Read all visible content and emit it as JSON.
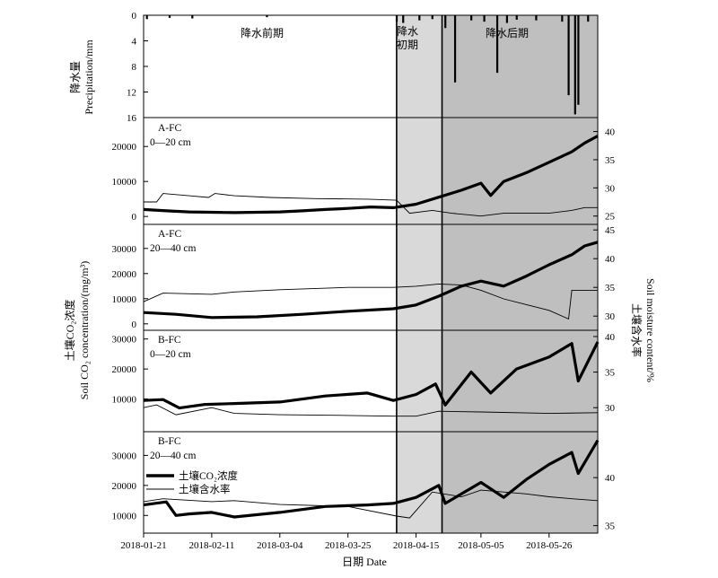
{
  "chart_data": {
    "type": "line",
    "x_ticks": [
      "2018-01-21",
      "2018-02-11",
      "2018-03-04",
      "2018-03-25",
      "2018-04-15",
      "2018-05-05",
      "2018-05-26"
    ],
    "x_range": [
      "2018-01-21",
      "2018-06-10"
    ],
    "x_label": "日期 Date",
    "periods": [
      {
        "label": "降水前期",
        "start": "2018-01-21",
        "end": "2018-04-09",
        "shade": "#ffffff"
      },
      {
        "label_lines": [
          "降水",
          "初期"
        ],
        "start": "2018-04-09",
        "end": "2018-04-23",
        "shade": "#d9d9d9"
      },
      {
        "label": "降水后期",
        "start": "2018-04-23",
        "end": "2018-06-10",
        "shade": "#bfbfbf"
      }
    ],
    "precipitation": {
      "ylabel_cn": "降水量",
      "ylabel_en": "Precipitation/mm",
      "yticks": [
        "0",
        "4",
        "8",
        "12",
        "16"
      ],
      "ylim": [
        0,
        16
      ],
      "inverted": true,
      "events": [
        {
          "date": "2018-01-22",
          "value": 0.6
        },
        {
          "date": "2018-01-29",
          "value": 0.4
        },
        {
          "date": "2018-02-05",
          "value": 0.5
        },
        {
          "date": "2018-02-28",
          "value": 0.3
        },
        {
          "date": "2018-04-09",
          "value": 1.0
        },
        {
          "date": "2018-04-11",
          "value": 1.2
        },
        {
          "date": "2018-04-16",
          "value": 0.8
        },
        {
          "date": "2018-04-20",
          "value": 0.6
        },
        {
          "date": "2018-04-24",
          "value": 2.0
        },
        {
          "date": "2018-04-27",
          "value": 10.5
        },
        {
          "date": "2018-05-02",
          "value": 0.8
        },
        {
          "date": "2018-05-06",
          "value": 1.0
        },
        {
          "date": "2018-05-10",
          "value": 9.0
        },
        {
          "date": "2018-05-13",
          "value": 1.2
        },
        {
          "date": "2018-05-16",
          "value": 0.7
        },
        {
          "date": "2018-05-22",
          "value": 0.8
        },
        {
          "date": "2018-05-30",
          "value": 1.0
        },
        {
          "date": "2018-06-01",
          "value": 12.5
        },
        {
          "date": "2018-06-03",
          "value": 15.5
        },
        {
          "date": "2018-06-04",
          "value": 14.0
        },
        {
          "date": "2018-06-07",
          "value": 1.0
        }
      ]
    },
    "shared_ylabel_left": "土壤CO₂浓度",
    "shared_ylabel_left_en": "Soil CO₂ concentration/(mg/m³)",
    "shared_ylabel_right": "土壤含水率",
    "shared_ylabel_right_en": "Soil moisture content/%",
    "panels": [
      {
        "title": "A-FC",
        "depth": "0—20 cm",
        "ylim_left": [
          -1500,
          27500
        ],
        "yticks_left": [
          "0",
          "10000",
          "20000"
        ],
        "ylim_right": [
          24,
          42
        ],
        "yticks_right": [
          "25",
          "30",
          "35",
          "40"
        ],
        "co2": [
          [
            "2018-01-21",
            2000
          ],
          [
            "2018-01-28",
            1600
          ],
          [
            "2018-02-04",
            1300
          ],
          [
            "2018-02-11",
            1200
          ],
          [
            "2018-02-18",
            1100
          ],
          [
            "2018-02-25",
            1200
          ],
          [
            "2018-03-04",
            1300
          ],
          [
            "2018-03-11",
            1600
          ],
          [
            "2018-03-18",
            2000
          ],
          [
            "2018-03-25",
            2300
          ],
          [
            "2018-04-01",
            2700
          ],
          [
            "2018-04-08",
            2500
          ],
          [
            "2018-04-15",
            3500
          ],
          [
            "2018-04-22",
            5500
          ],
          [
            "2018-04-29",
            7500
          ],
          [
            "2018-05-05",
            9500
          ],
          [
            "2018-05-08",
            6000
          ],
          [
            "2018-05-12",
            10000
          ],
          [
            "2018-05-19",
            12500
          ],
          [
            "2018-05-26",
            15500
          ],
          [
            "2018-06-02",
            18500
          ],
          [
            "2018-06-06",
            21000
          ],
          [
            "2018-06-10",
            23000
          ]
        ],
        "moisture": [
          [
            "2018-01-21",
            27.5
          ],
          [
            "2018-01-25",
            27.5
          ],
          [
            "2018-01-27",
            29.0
          ],
          [
            "2018-02-04",
            28.6
          ],
          [
            "2018-02-10",
            28.3
          ],
          [
            "2018-02-12",
            29.0
          ],
          [
            "2018-02-18",
            28.6
          ],
          [
            "2018-03-01",
            28.3
          ],
          [
            "2018-03-15",
            28.1
          ],
          [
            "2018-03-31",
            28.0
          ],
          [
            "2018-04-09",
            27.8
          ],
          [
            "2018-04-13",
            25.5
          ],
          [
            "2018-04-20",
            26.0
          ],
          [
            "2018-04-26",
            25.5
          ],
          [
            "2018-05-05",
            25.0
          ],
          [
            "2018-05-12",
            25.5
          ],
          [
            "2018-05-26",
            25.5
          ],
          [
            "2018-06-02",
            26.0
          ],
          [
            "2018-06-06",
            26.5
          ],
          [
            "2018-06-10",
            26.5
          ]
        ]
      },
      {
        "title": "A-FC",
        "depth": "20—40 cm",
        "ylim_left": [
          -1500,
          38500
        ],
        "yticks_left": [
          "0",
          "10000",
          "20000",
          "30000"
        ],
        "ylim_right": [
          28,
          45.5
        ],
        "yticks_right": [
          "30",
          "35",
          "40",
          "45"
        ],
        "co2": [
          [
            "2018-01-21",
            4500
          ],
          [
            "2018-01-31",
            3800
          ],
          [
            "2018-02-11",
            2500
          ],
          [
            "2018-02-25",
            2800
          ],
          [
            "2018-03-11",
            3800
          ],
          [
            "2018-03-25",
            5000
          ],
          [
            "2018-04-08",
            6000
          ],
          [
            "2018-04-15",
            7500
          ],
          [
            "2018-04-22",
            11000
          ],
          [
            "2018-04-29",
            15000
          ],
          [
            "2018-05-05",
            17000
          ],
          [
            "2018-05-12",
            15000
          ],
          [
            "2018-05-19",
            19000
          ],
          [
            "2018-05-26",
            23500
          ],
          [
            "2018-06-02",
            27500
          ],
          [
            "2018-06-06",
            31000
          ],
          [
            "2018-06-10",
            32500
          ]
        ],
        "moisture": [
          [
            "2018-01-21",
            32.5
          ],
          [
            "2018-01-27",
            34.0
          ],
          [
            "2018-02-11",
            33.8
          ],
          [
            "2018-02-18",
            34.2
          ],
          [
            "2018-03-04",
            34.6
          ],
          [
            "2018-03-25",
            35.0
          ],
          [
            "2018-04-08",
            35.0
          ],
          [
            "2018-04-15",
            35.2
          ],
          [
            "2018-04-22",
            35.6
          ],
          [
            "2018-04-29",
            35.4
          ],
          [
            "2018-05-05",
            34.5
          ],
          [
            "2018-05-12",
            33.0
          ],
          [
            "2018-05-19",
            32.0
          ],
          [
            "2018-05-26",
            31.0
          ],
          [
            "2018-06-01",
            29.5
          ],
          [
            "2018-06-02",
            34.5
          ],
          [
            "2018-06-06",
            34.5
          ],
          [
            "2018-06-10",
            34.5
          ]
        ]
      },
      {
        "title": "B-FC",
        "depth": "0—20 cm",
        "ylim_left": [
          0,
          32000
        ],
        "yticks_left": [
          "10000",
          "20000",
          "30000"
        ],
        "ylim_right": [
          27,
          40.5
        ],
        "yticks_right": [
          "30",
          "35",
          "40"
        ],
        "co2": [
          [
            "2018-01-21",
            9500
          ],
          [
            "2018-01-27",
            9800
          ],
          [
            "2018-02-01",
            7000
          ],
          [
            "2018-02-09",
            8200
          ],
          [
            "2018-02-18",
            8500
          ],
          [
            "2018-03-04",
            9000
          ],
          [
            "2018-03-18",
            11000
          ],
          [
            "2018-03-31",
            12000
          ],
          [
            "2018-04-08",
            9500
          ],
          [
            "2018-04-15",
            11500
          ],
          [
            "2018-04-21",
            15000
          ],
          [
            "2018-04-24",
            8000
          ],
          [
            "2018-05-02",
            19000
          ],
          [
            "2018-05-08",
            12000
          ],
          [
            "2018-05-16",
            20000
          ],
          [
            "2018-05-26",
            24000
          ],
          [
            "2018-06-02",
            28500
          ],
          [
            "2018-06-04",
            16000
          ],
          [
            "2018-06-10",
            29000
          ]
        ],
        "moisture": [
          [
            "2018-01-21",
            30.0
          ],
          [
            "2018-01-25",
            30.4
          ],
          [
            "2018-01-31",
            29.0
          ],
          [
            "2018-02-11",
            30.0
          ],
          [
            "2018-02-18",
            29.2
          ],
          [
            "2018-03-04",
            29.0
          ],
          [
            "2018-03-25",
            28.9
          ],
          [
            "2018-04-08",
            28.8
          ],
          [
            "2018-04-15",
            28.8
          ],
          [
            "2018-04-22",
            29.5
          ],
          [
            "2018-05-05",
            29.4
          ],
          [
            "2018-05-26",
            29.2
          ],
          [
            "2018-06-10",
            29.3
          ]
        ]
      },
      {
        "title": "B-FC",
        "depth": "20—40 cm",
        "ylim_left": [
          5000,
          37000
        ],
        "yticks_left": [
          "10000",
          "20000",
          "30000"
        ],
        "ylim_right": [
          34.5,
          44.5
        ],
        "yticks_right": [
          "35",
          "40"
        ],
        "co2": [
          [
            "2018-01-21",
            13500
          ],
          [
            "2018-01-28",
            14500
          ],
          [
            "2018-01-31",
            10000
          ],
          [
            "2018-02-04",
            10500
          ],
          [
            "2018-02-11",
            11000
          ],
          [
            "2018-02-18",
            9500
          ],
          [
            "2018-03-04",
            11000
          ],
          [
            "2018-03-18",
            13000
          ],
          [
            "2018-03-31",
            13500
          ],
          [
            "2018-04-08",
            14000
          ],
          [
            "2018-04-15",
            16000
          ],
          [
            "2018-04-22",
            20000
          ],
          [
            "2018-04-24",
            14000
          ],
          [
            "2018-05-05",
            21000
          ],
          [
            "2018-05-12",
            16000
          ],
          [
            "2018-05-19",
            22000
          ],
          [
            "2018-05-26",
            27000
          ],
          [
            "2018-06-02",
            31000
          ],
          [
            "2018-06-04",
            24000
          ],
          [
            "2018-06-10",
            35000
          ]
        ],
        "moisture": [
          [
            "2018-01-21",
            37.5
          ],
          [
            "2018-01-27",
            37.8
          ],
          [
            "2018-02-11",
            37.5
          ],
          [
            "2018-02-18",
            37.6
          ],
          [
            "2018-03-04",
            37.2
          ],
          [
            "2018-03-25",
            37.0
          ],
          [
            "2018-04-09",
            36.0
          ],
          [
            "2018-04-13",
            35.8
          ],
          [
            "2018-04-20",
            38.5
          ],
          [
            "2018-04-29",
            38.0
          ],
          [
            "2018-05-05",
            38.7
          ],
          [
            "2018-05-19",
            38.3
          ],
          [
            "2018-05-26",
            38.0
          ],
          [
            "2018-06-02",
            37.8
          ],
          [
            "2018-06-10",
            37.6
          ]
        ]
      }
    ],
    "legend": [
      {
        "label": "土壤CO₂浓度",
        "style": "thick"
      },
      {
        "label": "土壤含水率",
        "style": "thin"
      }
    ]
  }
}
